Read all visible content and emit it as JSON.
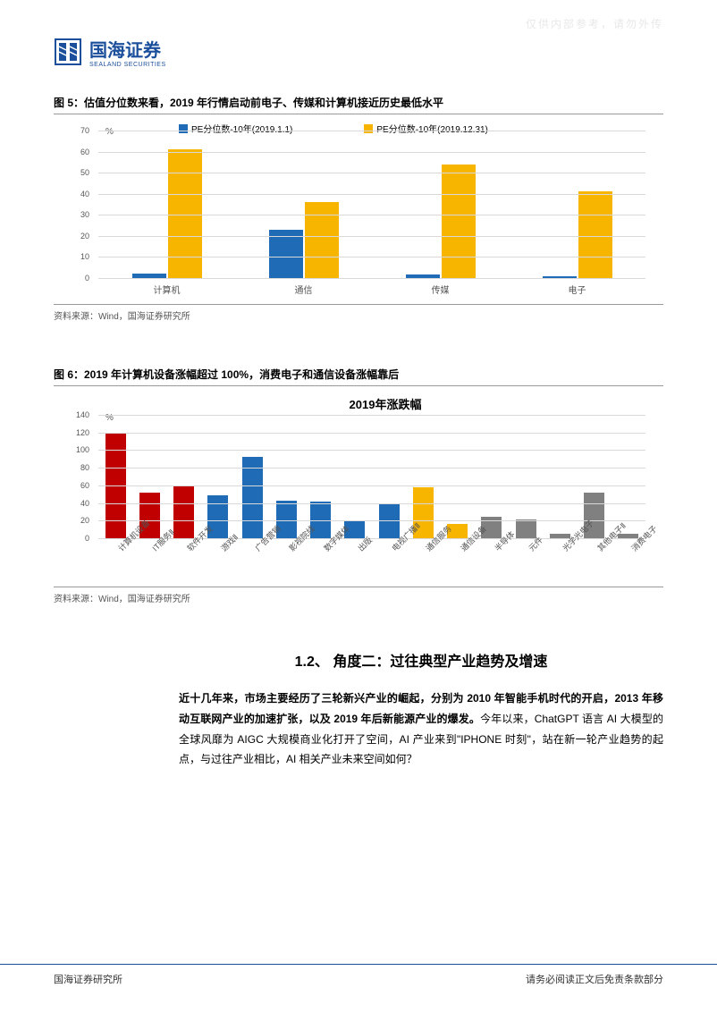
{
  "watermark": "仅供内部参考，请勿外传",
  "header": {
    "company_cn": "国海证券",
    "company_en": "SEALAND SECURITIES",
    "logo_color": "#1b4f9c"
  },
  "fig5": {
    "title": "图 5：估值分位数来看，2019 年行情启动前电子、传媒和计算机接近历史最低水平",
    "type": "bar",
    "unit": "%",
    "categories": [
      "计算机",
      "通信",
      "传媒",
      "电子"
    ],
    "series": [
      {
        "name": "PE分位数-10年(2019.1.1)",
        "color": "#1f6bb5",
        "values": [
          2,
          23,
          1.5,
          1
        ]
      },
      {
        "name": "PE分位数-10年(2019.12.31)",
        "color": "#f7b500",
        "values": [
          61,
          36,
          54,
          41
        ]
      }
    ],
    "ylim": [
      0,
      70
    ],
    "ytick_step": 10,
    "grid_color": "#d9d9d9",
    "source": "资料来源：Wind，国海证券研究所"
  },
  "fig6": {
    "title": "图 6：2019 年计算机设备涨幅超过 100%，消费电子和通信设备涨幅靠后",
    "chart_title": "2019年涨跌幅",
    "type": "bar",
    "unit": "%",
    "categories": [
      "计算机设备",
      "IT服务Ⅱ",
      "软件开发",
      "游戏Ⅱ",
      "广告营销",
      "影视院线",
      "数字媒体",
      "出版",
      "电视广播Ⅱ",
      "通信服务",
      "通信设备",
      "半导体",
      "元件",
      "光学光电子",
      "其他电子Ⅱ",
      "消费电子"
    ],
    "values": [
      119,
      52,
      59,
      49,
      92,
      43,
      42,
      20,
      39,
      58,
      16,
      24,
      21,
      5,
      52,
      5
    ],
    "colors": [
      "#c00000",
      "#c00000",
      "#c00000",
      "#1f6bb5",
      "#1f6bb5",
      "#1f6bb5",
      "#1f6bb5",
      "#1f6bb5",
      "#1f6bb5",
      "#f7b500",
      "#f7b500",
      "#808080",
      "#808080",
      "#808080",
      "#808080",
      "#808080"
    ],
    "ylim": [
      0,
      140
    ],
    "ytick_step": 20,
    "grid_color": "#d9d9d9",
    "source": "资料来源：Wind，国海证券研究所"
  },
  "section": {
    "heading": "1.2、 角度二：过往典型产业趋势及增速",
    "paragraph_bold": "近十几年来，市场主要经历了三轮新兴产业的崛起，分别为 2010 年智能手机时代的开启，2013 年移动互联网产业的加速扩张，以及 2019 年后新能源产业的爆发。",
    "paragraph_rest": "今年以来，ChatGPT 语言 AI 大模型的全球风靡为 AIGC 大规模商业化打开了空间，AI 产业来到\"IPHONE 时刻\"，站在新一轮产业趋势的起点，与过往产业相比，AI 相关产业未来空间如何？"
  },
  "footer": {
    "left": "国海证券研究所",
    "right": "请务必阅读正文后免责条款部分"
  }
}
